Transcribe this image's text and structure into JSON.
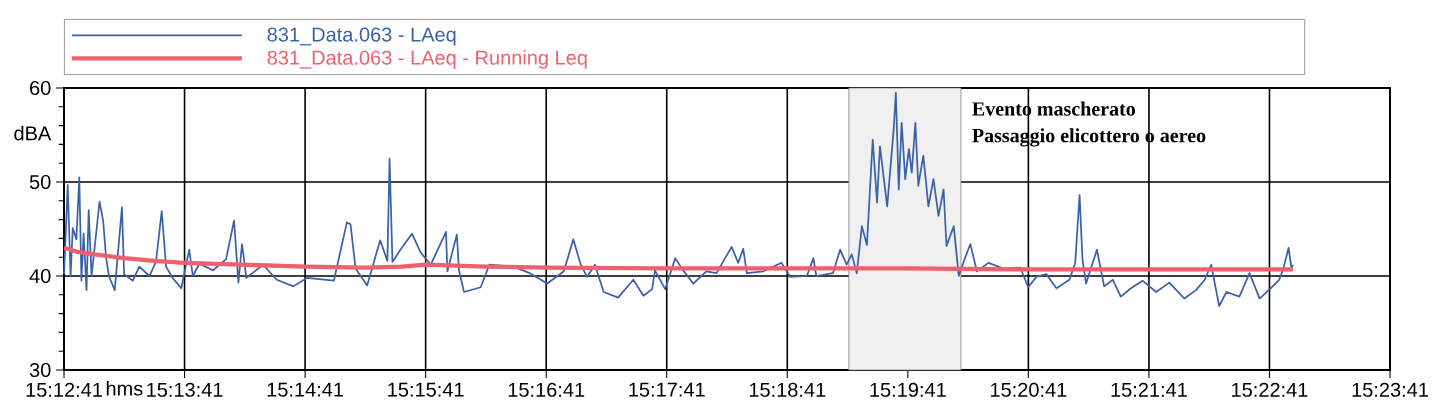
{
  "chart_data": {
    "type": "line",
    "xlabel": "hms",
    "ylabel": "dBA",
    "xlim": [
      15.211389,
      15.394722
    ],
    "ylim": [
      30,
      60
    ],
    "xticks": [
      {
        "value": 15.211389,
        "label": "15:12:41"
      },
      {
        "value": 15.228056,
        "label": "15:13:41"
      },
      {
        "value": 15.244722,
        "label": "15:14:41"
      },
      {
        "value": 15.261389,
        "label": "15:15:41"
      },
      {
        "value": 15.278056,
        "label": "15:16:41"
      },
      {
        "value": 15.294722,
        "label": "15:17:41"
      },
      {
        "value": 15.311389,
        "label": "15:18:41"
      },
      {
        "value": 15.328056,
        "label": "15:19:41"
      },
      {
        "value": 15.344722,
        "label": "15:20:41"
      },
      {
        "value": 15.361389,
        "label": "15:21:41"
      },
      {
        "value": 15.378056,
        "label": "15:22:41"
      },
      {
        "value": 15.394722,
        "label": "15:23:41"
      }
    ],
    "yticks": [
      30,
      40,
      50,
      60
    ],
    "grid": true,
    "legend": "top",
    "series": [
      {
        "name": "831_Data.063 - LAeq",
        "color": "#3b62a8",
        "x": [
          15.2114,
          15.2119,
          15.2123,
          15.2126,
          15.2131,
          15.2135,
          15.2138,
          15.2141,
          15.2145,
          15.2148,
          15.2152,
          15.2163,
          15.2168,
          15.2172,
          15.2176,
          15.2184,
          15.2194,
          15.2197,
          15.2209,
          15.2218,
          15.2232,
          15.2241,
          15.2249,
          15.2255,
          15.2264,
          15.2276,
          15.2287,
          15.2292,
          15.2301,
          15.232,
          15.2338,
          15.2349,
          15.2355,
          15.236,
          15.2366,
          15.2389,
          15.2408,
          15.2431,
          15.245,
          15.2487,
          15.2505,
          15.251,
          15.2517,
          15.2533,
          15.2551,
          15.2561,
          15.2564,
          15.2568,
          15.2579,
          15.2595,
          15.2607,
          15.2621,
          15.2642,
          15.2644,
          15.2657,
          15.266,
          15.2667,
          15.269,
          15.2702,
          15.2735,
          15.2758,
          15.2782,
          15.2805,
          15.2818,
          15.2828,
          15.2837,
          15.2848,
          15.286,
          15.288,
          15.2901,
          15.2915,
          15.2927,
          15.2931,
          15.2945,
          15.2959,
          15.297,
          15.2984,
          15.3002,
          15.3016,
          15.3037,
          15.3046,
          15.3053,
          15.3058,
          15.3081,
          15.3106,
          15.3118,
          15.3141,
          15.315,
          15.3154,
          15.3177,
          15.3187,
          15.3196,
          15.3203,
          15.321,
          15.3217,
          15.3224,
          15.3232,
          15.3238,
          15.3242,
          15.3252,
          15.3261,
          15.3264,
          15.3268,
          15.3272,
          15.3277,
          15.3282,
          15.3286,
          15.3291,
          15.3295,
          15.3302,
          15.3309,
          15.3316,
          15.3323,
          15.333,
          15.3334,
          15.3344,
          15.3351,
          15.336,
          15.3367,
          15.3376,
          15.3392,
          15.3413,
          15.3436,
          15.3447,
          15.3458,
          15.3472,
          15.3486,
          15.3504,
          15.3512,
          15.3518,
          15.3522,
          15.3527,
          15.3542,
          15.3552,
          15.3564,
          15.3575,
          15.3589,
          15.3605,
          15.3624,
          15.3642,
          15.3663,
          15.3679,
          15.3691,
          15.37,
          15.3711,
          15.3721,
          15.3739,
          15.3753,
          15.3767,
          15.3781,
          15.3794,
          15.3799,
          15.3807,
          15.3811,
          15.3813
        ],
        "values": [
          40.2,
          49.7,
          40,
          45.1,
          43.9,
          50.5,
          39.5,
          44.5,
          38.5,
          47,
          40,
          47.9,
          45.9,
          42,
          40,
          38.5,
          47.3,
          40.2,
          39.5,
          41,
          40,
          41.5,
          46.9,
          41,
          39.8,
          38.7,
          42.8,
          40,
          41.3,
          40.6,
          41.8,
          45.9,
          39.3,
          43.4,
          39.8,
          41.2,
          39.6,
          38.9,
          39.8,
          39.5,
          45.7,
          45.5,
          40.8,
          39,
          43.8,
          41.6,
          52.5,
          41.5,
          42.8,
          44.5,
          42.5,
          41.2,
          44.7,
          40.5,
          44.4,
          40.6,
          38.3,
          38.8,
          41.2,
          41,
          40.3,
          39.2,
          40.5,
          43.9,
          41.3,
          39.9,
          41.2,
          38.3,
          37.7,
          39.6,
          37.9,
          38.6,
          40.6,
          38.6,
          41.9,
          40.6,
          39.2,
          40.5,
          40.3,
          43.1,
          41.4,
          42.9,
          40.3,
          40.5,
          41.4,
          39.9,
          40,
          41.9,
          40,
          40.3,
          42.8,
          41.2,
          42.3,
          40.3,
          45.3,
          43.3,
          54.5,
          47.8,
          53.8,
          47.4,
          55.6,
          59.5,
          49.2,
          56.3,
          50.3,
          53.5,
          51,
          56.3,
          49.6,
          52.8,
          47.4,
          50.3,
          46.4,
          49.2,
          43.2,
          45.3,
          40,
          42,
          43.4,
          40.5,
          41.4,
          40.8,
          40.9,
          38.8,
          39.9,
          40.2,
          38.7,
          39.6,
          41.4,
          48.6,
          41.8,
          39.2,
          42.8,
          38.9,
          39.6,
          37.8,
          38.7,
          39.5,
          38.3,
          39.3,
          37.6,
          38.5,
          39.6,
          41.2,
          36.8,
          38.3,
          37.8,
          40.3,
          37.6,
          38.6,
          39.6,
          40.6,
          43,
          40.8,
          41.2
        ]
      },
      {
        "name": "831_Data.063 - LAeq - Running Leq",
        "color": "#f0606e",
        "x": [
          15.2114,
          15.2131,
          15.2156,
          15.2197,
          15.2239,
          15.2281,
          15.2364,
          15.2447,
          15.2531,
          15.2581,
          15.2614,
          15.2697,
          15.2781,
          15.2947,
          15.3114,
          15.3281,
          15.3447,
          15.3614,
          15.3813
        ],
        "values": [
          43,
          42.6,
          42.3,
          41.9,
          41.6,
          41.4,
          41.2,
          41,
          40.9,
          41,
          41.2,
          41,
          40.9,
          40.8,
          40.8,
          40.8,
          40.7,
          40.7,
          40.7
        ]
      }
    ],
    "bands": [
      {
        "axis": "x",
        "from": 15.3199,
        "to": 15.3354,
        "color": "#808080"
      }
    ],
    "annotations": [
      "Evento mascherato",
      "Passaggio elicottero o aereo"
    ]
  }
}
